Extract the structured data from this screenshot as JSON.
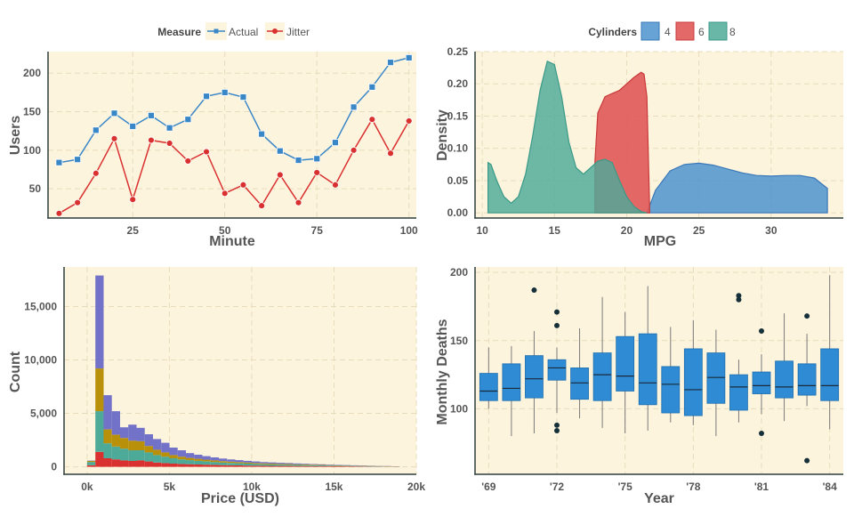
{
  "chart_data": [
    {
      "type": "line",
      "legend": {
        "title": "Measure",
        "placement": "top"
      },
      "xlabel": "Minute",
      "ylabel": "Users",
      "xlim": [
        2,
        102
      ],
      "ylim": [
        12,
        228
      ],
      "xticks": [
        25,
        50,
        75,
        100
      ],
      "yticks": [
        50,
        100,
        150,
        200
      ],
      "x": [
        5,
        10,
        15,
        20,
        25,
        30,
        35,
        40,
        45,
        50,
        55,
        60,
        65,
        70,
        75,
        80,
        85,
        90,
        95,
        100
      ],
      "series": [
        {
          "name": "Actual",
          "color": "#3a87c8",
          "marker": "square",
          "values": [
            84,
            88,
            126,
            148,
            131,
            145,
            129,
            140,
            170,
            175,
            169,
            121,
            99,
            87,
            89,
            110,
            156,
            182,
            214,
            220
          ]
        },
        {
          "name": "Jitter",
          "color": "#d93030",
          "marker": "circle",
          "values": [
            18,
            32,
            70,
            115,
            36,
            113,
            109,
            86,
            98,
            44,
            55,
            28,
            68,
            32,
            71,
            55,
            100,
            140,
            96,
            138
          ]
        }
      ],
      "grid": true
    },
    {
      "type": "area",
      "subtype": "density",
      "legend": {
        "title": "Cylinders",
        "placement": "top"
      },
      "xlabel": "MPG",
      "ylabel": "Density",
      "xlim": [
        9.5,
        35
      ],
      "ylim": [
        -0.008,
        0.25
      ],
      "xticks": [
        10,
        15,
        20,
        25,
        30
      ],
      "yticks": [
        0.0,
        0.05,
        0.1,
        0.15,
        0.2,
        0.25
      ],
      "series": [
        {
          "name": "4",
          "color": "#4e93cf",
          "x": [
            21.4,
            22,
            23,
            24,
            25,
            26,
            27,
            28,
            29,
            30,
            31,
            32,
            33,
            33.9
          ],
          "values": [
            0,
            0.035,
            0.065,
            0.075,
            0.077,
            0.074,
            0.068,
            0.062,
            0.058,
            0.057,
            0.058,
            0.058,
            0.054,
            0.038
          ]
        },
        {
          "name": "6",
          "color": "#e05858",
          "x": [
            17.8,
            18,
            18.5,
            19,
            19.5,
            20,
            20.5,
            21,
            21.2,
            21.4,
            21.6
          ],
          "values": [
            0.08,
            0.155,
            0.18,
            0.185,
            0.19,
            0.2,
            0.21,
            0.218,
            0.215,
            0.18,
            0.0
          ]
        },
        {
          "name": "8",
          "color": "#4daa98",
          "x": [
            10.4,
            10.6,
            11,
            11.5,
            12,
            12.5,
            13,
            13.5,
            14,
            14.5,
            15,
            15.5,
            16,
            16.5,
            17,
            17.5,
            18,
            18.5,
            19,
            19.5,
            20,
            20.5,
            21,
            21.4
          ],
          "values": [
            0.078,
            0.075,
            0.05,
            0.025,
            0.015,
            0.025,
            0.06,
            0.12,
            0.19,
            0.235,
            0.23,
            0.18,
            0.11,
            0.07,
            0.06,
            0.07,
            0.08,
            0.083,
            0.078,
            0.05,
            0.025,
            0.01,
            0.002,
            0.0
          ]
        }
      ],
      "grid": true
    },
    {
      "type": "bar",
      "subtype": "stacked histogram",
      "xlabel": "Price (USD)",
      "ylabel": "Count",
      "xlim": [
        -1400,
        20000
      ],
      "ylim": [
        -700,
        18700
      ],
      "xticks": [
        0,
        5000,
        10000,
        15000,
        20000
      ],
      "xticklabels": [
        "0k",
        "5k",
        "10k",
        "15k",
        "20k"
      ],
      "yticks": [
        0,
        5000,
        10000,
        15000
      ],
      "yticklabels": [
        "0",
        "5,000",
        "10,000",
        "15,000"
      ],
      "bin_edges": [
        0,
        500,
        1000,
        1500,
        2000,
        2500,
        3000,
        3500,
        4000,
        4500,
        5000,
        5500,
        6000,
        6500,
        7000,
        7500,
        8000,
        8500,
        9000,
        9500,
        10000,
        10500,
        11000,
        11500,
        12000,
        12500,
        13000,
        13500,
        14000,
        14500,
        15000,
        15500,
        16000,
        16500,
        17000,
        17500,
        18000,
        18500,
        19000
      ],
      "series": [
        {
          "name": "red",
          "color": "#d93030",
          "values": [
            150,
            1400,
            800,
            700,
            600,
            550,
            600,
            500,
            400,
            350,
            300,
            270,
            240,
            220,
            200,
            180,
            160,
            140,
            130,
            120,
            110,
            100,
            90,
            85,
            80,
            75,
            70,
            65,
            60,
            55,
            50,
            45,
            40,
            35,
            30,
            25,
            20,
            15
          ]
        },
        {
          "name": "green",
          "color": "#4daa98",
          "values": [
            300,
            3800,
            1400,
            1200,
            1100,
            1000,
            950,
            850,
            700,
            600,
            500,
            430,
            380,
            340,
            300,
            270,
            240,
            220,
            200,
            180,
            160,
            140,
            130,
            120,
            110,
            100,
            90,
            80,
            70,
            60,
            50,
            45,
            40,
            35,
            30,
            25,
            20,
            15
          ]
        },
        {
          "name": "gold",
          "color": "#b8900a",
          "values": [
            100,
            4000,
            1300,
            1100,
            1000,
            900,
            850,
            600,
            500,
            400,
            300,
            250,
            210,
            190,
            170,
            150,
            130,
            120,
            110,
            100,
            90,
            80,
            75,
            70,
            65,
            60,
            55,
            50,
            45,
            40,
            35,
            30,
            25,
            22,
            20,
            18,
            15,
            12
          ]
        },
        {
          "name": "purple",
          "color": "#7272c8",
          "values": [
            30,
            8700,
            3200,
            2200,
            1000,
            1500,
            1250,
            1100,
            1000,
            900,
            700,
            600,
            450,
            380,
            330,
            280,
            240,
            210,
            180,
            160,
            140,
            120,
            110,
            100,
            90,
            80,
            70,
            60,
            55,
            50,
            45,
            40,
            35,
            30,
            25,
            20,
            15,
            10
          ]
        }
      ],
      "grid": true
    },
    {
      "type": "box",
      "xlabel": "Year",
      "ylabel": "Monthly Deaths",
      "xlim": [
        1968.4,
        1984.6
      ],
      "ylim": [
        52,
        204
      ],
      "xticks": [
        1969,
        1972,
        1975,
        1978,
        1981,
        1984
      ],
      "xticklabels": [
        "'69",
        "'72",
        "'75",
        "'78",
        "'81",
        "'84"
      ],
      "yticks": [
        100,
        150,
        200
      ],
      "color": "#2e8bd4",
      "boxes": [
        {
          "year": 1969,
          "min": 100,
          "q1": 106,
          "median": 113,
          "q3": 126,
          "max": 145,
          "outliers": []
        },
        {
          "year": 1970,
          "min": 80,
          "q1": 106,
          "median": 115,
          "q3": 133,
          "max": 146,
          "outliers": []
        },
        {
          "year": 1971,
          "min": 82,
          "q1": 108,
          "median": 122,
          "q3": 139,
          "max": 157,
          "outliers": [
            187
          ]
        },
        {
          "year": 1972,
          "min": 97,
          "q1": 121,
          "median": 130,
          "q3": 136,
          "max": 145,
          "outliers": [
            171,
            161,
            88,
            84
          ]
        },
        {
          "year": 1973,
          "min": 93,
          "q1": 107,
          "median": 119,
          "q3": 130,
          "max": 159,
          "outliers": []
        },
        {
          "year": 1974,
          "min": 86,
          "q1": 106,
          "median": 125,
          "q3": 141,
          "max": 182,
          "outliers": []
        },
        {
          "year": 1975,
          "min": 82,
          "q1": 113,
          "median": 124,
          "q3": 153,
          "max": 171,
          "outliers": []
        },
        {
          "year": 1976,
          "min": 84,
          "q1": 103,
          "median": 119,
          "q3": 155,
          "max": 190,
          "outliers": []
        },
        {
          "year": 1977,
          "min": 90,
          "q1": 97,
          "median": 118,
          "q3": 131,
          "max": 160,
          "outliers": []
        },
        {
          "year": 1978,
          "min": 88,
          "q1": 95,
          "median": 114,
          "q3": 144,
          "max": 165,
          "outliers": []
        },
        {
          "year": 1979,
          "min": 80,
          "q1": 104,
          "median": 123,
          "q3": 141,
          "max": 158,
          "outliers": []
        },
        {
          "year": 1980,
          "min": 90,
          "q1": 99,
          "median": 116,
          "q3": 125,
          "max": 136,
          "outliers": [
            183,
            180
          ]
        },
        {
          "year": 1981,
          "min": 96,
          "q1": 111,
          "median": 117,
          "q3": 127,
          "max": 140,
          "outliers": [
            157,
            82
          ]
        },
        {
          "year": 1982,
          "min": 91,
          "q1": 108,
          "median": 116,
          "q3": 135,
          "max": 170,
          "outliers": []
        },
        {
          "year": 1983,
          "min": 102,
          "q1": 110,
          "median": 117,
          "q3": 133,
          "max": 155,
          "outliers": [
            168,
            62
          ]
        },
        {
          "year": 1984,
          "min": 85,
          "q1": 106,
          "median": 117,
          "q3": 144,
          "max": 198,
          "outliers": []
        }
      ],
      "grid": true
    }
  ]
}
